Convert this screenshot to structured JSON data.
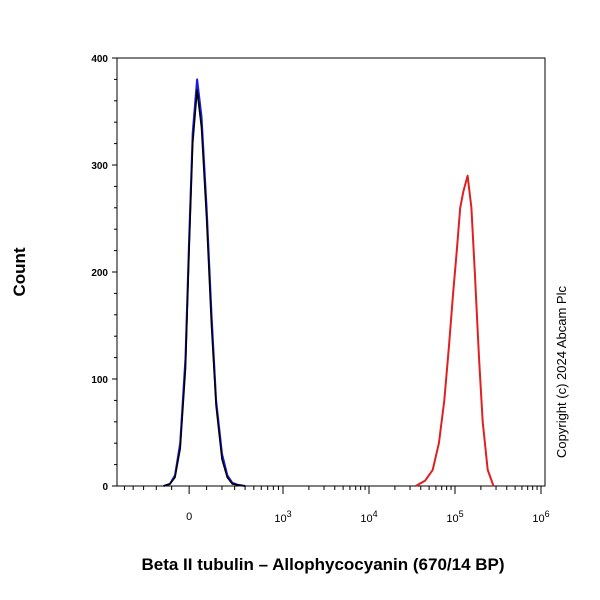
{
  "chart_data": {
    "type": "line",
    "xlabel": "Beta II tubulin – Allophycocyanin (670/14 BP)",
    "ylabel": "Count",
    "ylim": [
      0,
      400
    ],
    "y_ticks": [
      0,
      100,
      200,
      300,
      400
    ],
    "y_tick_labels": [
      "0",
      "100",
      "200",
      "300",
      "400"
    ],
    "x_scale": "biexponential",
    "x_ticks": [
      {
        "value": 0,
        "label": "0"
      },
      {
        "value": 1000,
        "base": "10",
        "exp": "3"
      },
      {
        "value": 10000,
        "base": "10",
        "exp": "4"
      },
      {
        "value": 100000,
        "base": "10",
        "exp": "5"
      },
      {
        "value": 1000000,
        "base": "10",
        "exp": "6"
      }
    ],
    "grid": false,
    "legend": "none",
    "annotation": "Copyright (c) 2024 Abcam Plc",
    "series": [
      {
        "color": "#1a1ae6",
        "x": [
          -150,
          -110,
          -80,
          -50,
          -20,
          0,
          20,
          45,
          70,
          100,
          130,
          160,
          200,
          240,
          280,
          330,
          400
        ],
        "y": [
          0,
          2,
          10,
          40,
          120,
          230,
          330,
          380,
          345,
          260,
          160,
          80,
          30,
          10,
          3,
          1,
          0
        ]
      },
      {
        "color": "#000000",
        "x": [
          -150,
          -110,
          -80,
          -50,
          -20,
          0,
          20,
          45,
          70,
          100,
          130,
          160,
          200,
          240,
          280,
          330,
          400
        ],
        "y": [
          0,
          2,
          8,
          35,
          110,
          220,
          320,
          370,
          335,
          250,
          150,
          75,
          25,
          8,
          2,
          1,
          0
        ]
      },
      {
        "color": "#e02020",
        "x": [
          35000,
          45000,
          55000,
          65000,
          75000,
          85000,
          95000,
          105000,
          115000,
          125000,
          140000,
          155000,
          170000,
          190000,
          210000,
          240000,
          280000
        ],
        "y": [
          0,
          5,
          15,
          40,
          80,
          130,
          180,
          220,
          260,
          275,
          290,
          260,
          200,
          120,
          60,
          15,
          0
        ]
      }
    ]
  }
}
